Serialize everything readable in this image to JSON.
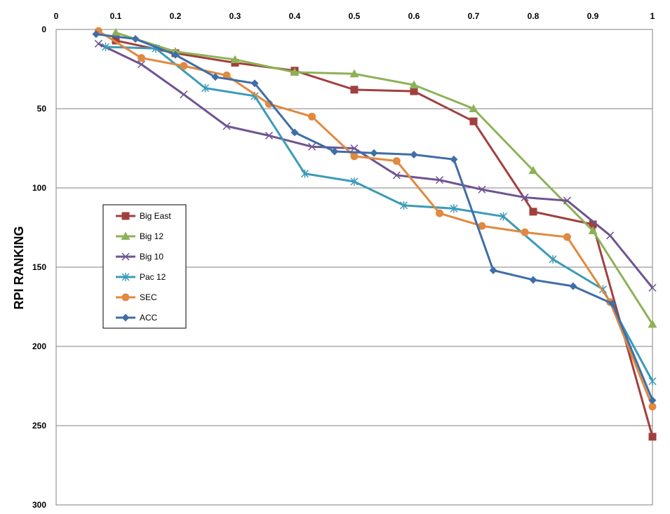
{
  "chart_data": {
    "type": "line",
    "title": "",
    "xlabel": "",
    "ylabel": "RPI RANKING",
    "xlim": [
      0,
      1
    ],
    "ylim": [
      0,
      300
    ],
    "y_inverted": true,
    "x_axis_position": "top",
    "x_ticks": [
      "0",
      "0.1",
      "0.2",
      "0.3",
      "0.4",
      "0.5",
      "0.6",
      "0.7",
      "0.8",
      "0.9",
      "1"
    ],
    "y_ticks": [
      "0",
      "50",
      "100",
      "150",
      "200",
      "250",
      "300"
    ],
    "grid": "horizontal",
    "legend_position": "left",
    "series": [
      {
        "name": "Big East",
        "color": "#a0403e",
        "marker": "square",
        "x": [
          0.1,
          0.2,
          0.3,
          0.4,
          0.5,
          0.6,
          0.7,
          0.8,
          0.9,
          1.0
        ],
        "y": [
          7,
          15,
          21,
          26,
          38,
          39,
          58,
          115,
          123,
          257
        ]
      },
      {
        "name": "Big 12",
        "color": "#8db256",
        "marker": "triangle",
        "x": [
          0.1,
          0.2,
          0.3,
          0.4,
          0.5,
          0.6,
          0.7,
          0.8,
          0.9,
          1.0
        ],
        "y": [
          2,
          14,
          19,
          27,
          28,
          35,
          50,
          89,
          127,
          186
        ]
      },
      {
        "name": "Big 10",
        "color": "#6f5492",
        "marker": "x",
        "x": [
          0.071,
          0.143,
          0.214,
          0.286,
          0.357,
          0.429,
          0.5,
          0.571,
          0.643,
          0.714,
          0.786,
          0.857,
          0.929,
          1.0
        ],
        "y": [
          9,
          22,
          41,
          61,
          67,
          74,
          75,
          92,
          95,
          101,
          106,
          108,
          130,
          163
        ]
      },
      {
        "name": "Pac 12",
        "color": "#3b9bb8",
        "marker": "asterisk",
        "x": [
          0.083,
          0.167,
          0.25,
          0.333,
          0.417,
          0.5,
          0.583,
          0.667,
          0.75,
          0.833,
          0.917,
          1.0
        ],
        "y": [
          11,
          12,
          37,
          42,
          91,
          96,
          111,
          113,
          118,
          145,
          164,
          222
        ]
      },
      {
        "name": "SEC",
        "color": "#e0893f",
        "marker": "circle",
        "x": [
          0.071,
          0.143,
          0.214,
          0.286,
          0.357,
          0.429,
          0.5,
          0.571,
          0.643,
          0.714,
          0.786,
          0.857,
          0.929,
          1.0
        ],
        "y": [
          1,
          18,
          23,
          29,
          47,
          55,
          80,
          83,
          116,
          124,
          128,
          131,
          172,
          238
        ]
      },
      {
        "name": "ACC",
        "color": "#3f6ea8",
        "marker": "diamond",
        "x": [
          0.067,
          0.133,
          0.2,
          0.267,
          0.333,
          0.4,
          0.467,
          0.533,
          0.6,
          0.667,
          0.733,
          0.8,
          0.867,
          0.933,
          1.0
        ],
        "y": [
          3,
          6,
          16,
          30,
          34,
          65,
          77,
          78,
          79,
          82,
          152,
          158,
          162,
          173,
          234
        ]
      }
    ]
  }
}
